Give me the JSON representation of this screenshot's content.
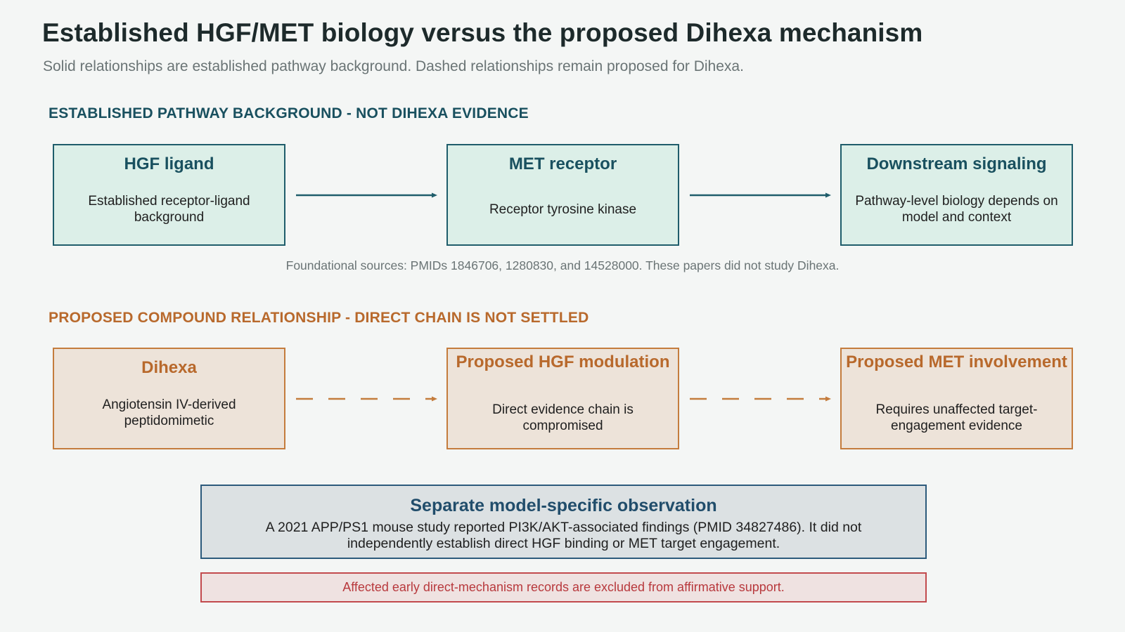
{
  "title": "Established HGF/MET biology versus the proposed Dihexa mechanism",
  "subtitle": "Solid relationships are established pathway background. Dashed relationships remain proposed for Dihexa.",
  "established": {
    "label": "ESTABLISHED PATHWAY BACKGROUND - NOT DIHEXA EVIDENCE",
    "nodes": [
      {
        "title": "HGF ligand",
        "body": "Established receptor-ligand background"
      },
      {
        "title": "MET receptor",
        "body": "Receptor tyrosine kinase"
      },
      {
        "title": "Downstream signaling",
        "body": "Pathway-level biology depends on model and context"
      }
    ],
    "footnote": "Foundational sources: PMIDs 1846706, 1280830, and 14528000. These papers did not study Dihexa."
  },
  "proposed": {
    "label": "PROPOSED COMPOUND RELATIONSHIP - DIRECT CHAIN IS NOT SETTLED",
    "nodes": [
      {
        "title": "Dihexa",
        "body": "Angiotensin IV-derived peptidomimetic"
      },
      {
        "title": "Proposed HGF modulation",
        "body": "Direct evidence chain is compromised"
      },
      {
        "title": "Proposed MET involvement",
        "body": "Requires unaffected target-engagement evidence"
      }
    ]
  },
  "observation": {
    "title": "Separate model-specific observation",
    "body": "A 2021 APP/PS1 mouse study reported PI3K/AKT-associated findings (PMID 34827486). It did not independently establish direct HGF binding or MET target engagement."
  },
  "warning": "Affected early direct-mechanism records are excluded from affirmative support.",
  "colors": {
    "established": "#1f5d6b",
    "proposed": "#c47c3d",
    "observation": "#2c5a7c",
    "warning": "#c24a4d"
  }
}
